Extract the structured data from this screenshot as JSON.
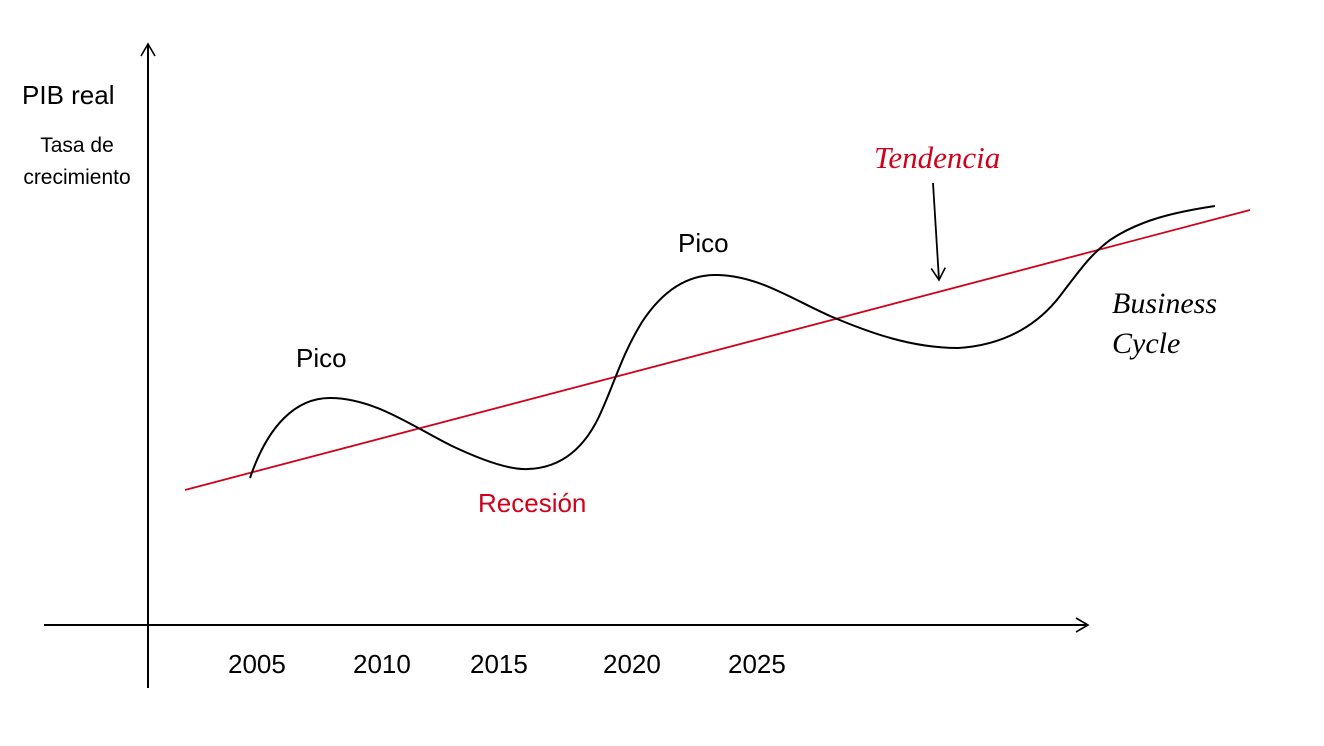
{
  "y_axis": {
    "title": "PIB real",
    "subtitle": "Tasa de crecimiento"
  },
  "x_axis": {
    "ticks": [
      "2005",
      "2010",
      "2015",
      "2020",
      "2025"
    ]
  },
  "annotations": {
    "peak_1": "Pico",
    "peak_2": "Pico",
    "recession": "Recesión",
    "trend": "Tendencia",
    "cycle": "Business Cycle"
  },
  "colors": {
    "axis": "#000000",
    "business_cycle": "#000000",
    "trend": "#d0021b",
    "recession_label": "#d0021b",
    "trend_label": "#d0021b"
  }
}
